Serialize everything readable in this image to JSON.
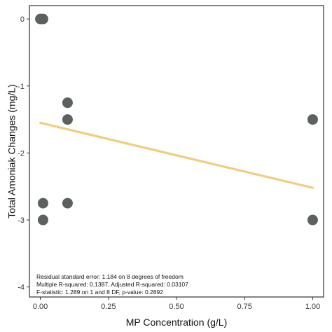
{
  "chart_data": {
    "type": "scatter",
    "xlabel": "MP Concentration (g/L)",
    "ylabel": "Total Amoniak Changes (mg/L)",
    "xlim": [
      -0.04,
      1.04
    ],
    "ylim": [
      -4.15,
      0.2
    ],
    "x_ticks": [
      0,
      0.25,
      0.5,
      0.75,
      1
    ],
    "x_tick_labels": [
      "0.00",
      "0.25",
      "0.50",
      "0.75",
      "1.00"
    ],
    "y_ticks": [
      0,
      -1,
      -2,
      -3,
      -4
    ],
    "y_tick_labels": [
      "0",
      "-1",
      "-2",
      "-3",
      "-4"
    ],
    "grid": false,
    "points": [
      {
        "x": 0,
        "y": 0
      },
      {
        "x": 0.01,
        "y": 0
      },
      {
        "x": 0.01,
        "y": -2.75
      },
      {
        "x": 0.01,
        "y": -3
      },
      {
        "x": 0.1,
        "y": -1.25
      },
      {
        "x": 0.1,
        "y": -1.5
      },
      {
        "x": 0.1,
        "y": -2.75
      },
      {
        "x": 1,
        "y": -1.5
      },
      {
        "x": 1,
        "y": -3
      }
    ],
    "regression_line": {
      "x": [
        0,
        1
      ],
      "y": [
        -1.55,
        -2.52
      ]
    },
    "annotations": [
      "Residual standard error: 1.184 on 8 degrees of freedom",
      "Multiple R-squared:  0.1387,    Adjusted R-squared:  0.03107",
      "F-statistic: 1.289 on 1 and 8 DF,  p-value: 0.2892"
    ],
    "colors": {
      "point": "#5c6061",
      "line": "#f2cc7e",
      "axis": "#333333",
      "text": "#111111"
    }
  }
}
